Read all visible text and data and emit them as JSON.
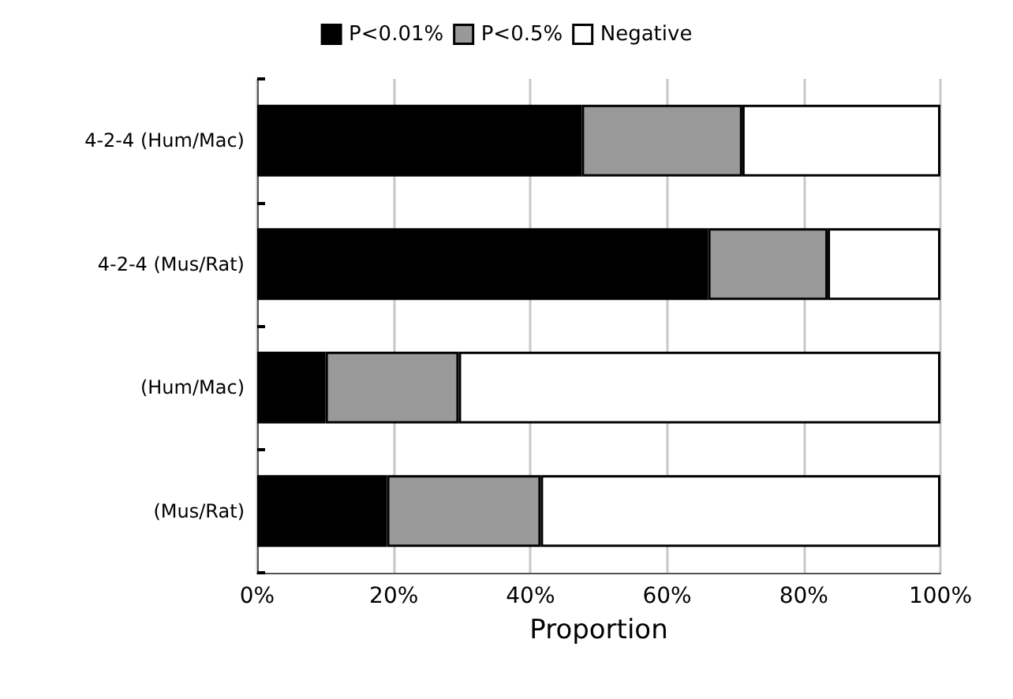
{
  "chart_data": {
    "type": "bar",
    "orientation": "horizontal",
    "stacked": true,
    "xlabel": "Proportion",
    "categories": [
      "4-2-4 (Hum/Mac)",
      "4-2-4 (Mus/Rat)",
      "(Hum/Mac)",
      "(Mus/Rat)"
    ],
    "series": [
      {
        "name": "P<0.01%",
        "color": "#000000",
        "values": [
          47.5,
          66,
          10,
          19
        ]
      },
      {
        "name": "P<0.5%",
        "color": "#999999",
        "values": [
          23.5,
          17.5,
          19.5,
          22.5
        ]
      },
      {
        "name": "Negative",
        "color": "#ffffff",
        "values": [
          29,
          16.5,
          70.5,
          58.5
        ]
      }
    ],
    "xlim": [
      0,
      100
    ],
    "xticks": [
      {
        "value": 0,
        "label": "0%"
      },
      {
        "value": 20,
        "label": "20%"
      },
      {
        "value": 40,
        "label": "40%"
      },
      {
        "value": 60,
        "label": "60%"
      },
      {
        "value": 80,
        "label": "80%"
      },
      {
        "value": 100,
        "label": "100%"
      }
    ],
    "grid": "x",
    "legend": "top"
  }
}
